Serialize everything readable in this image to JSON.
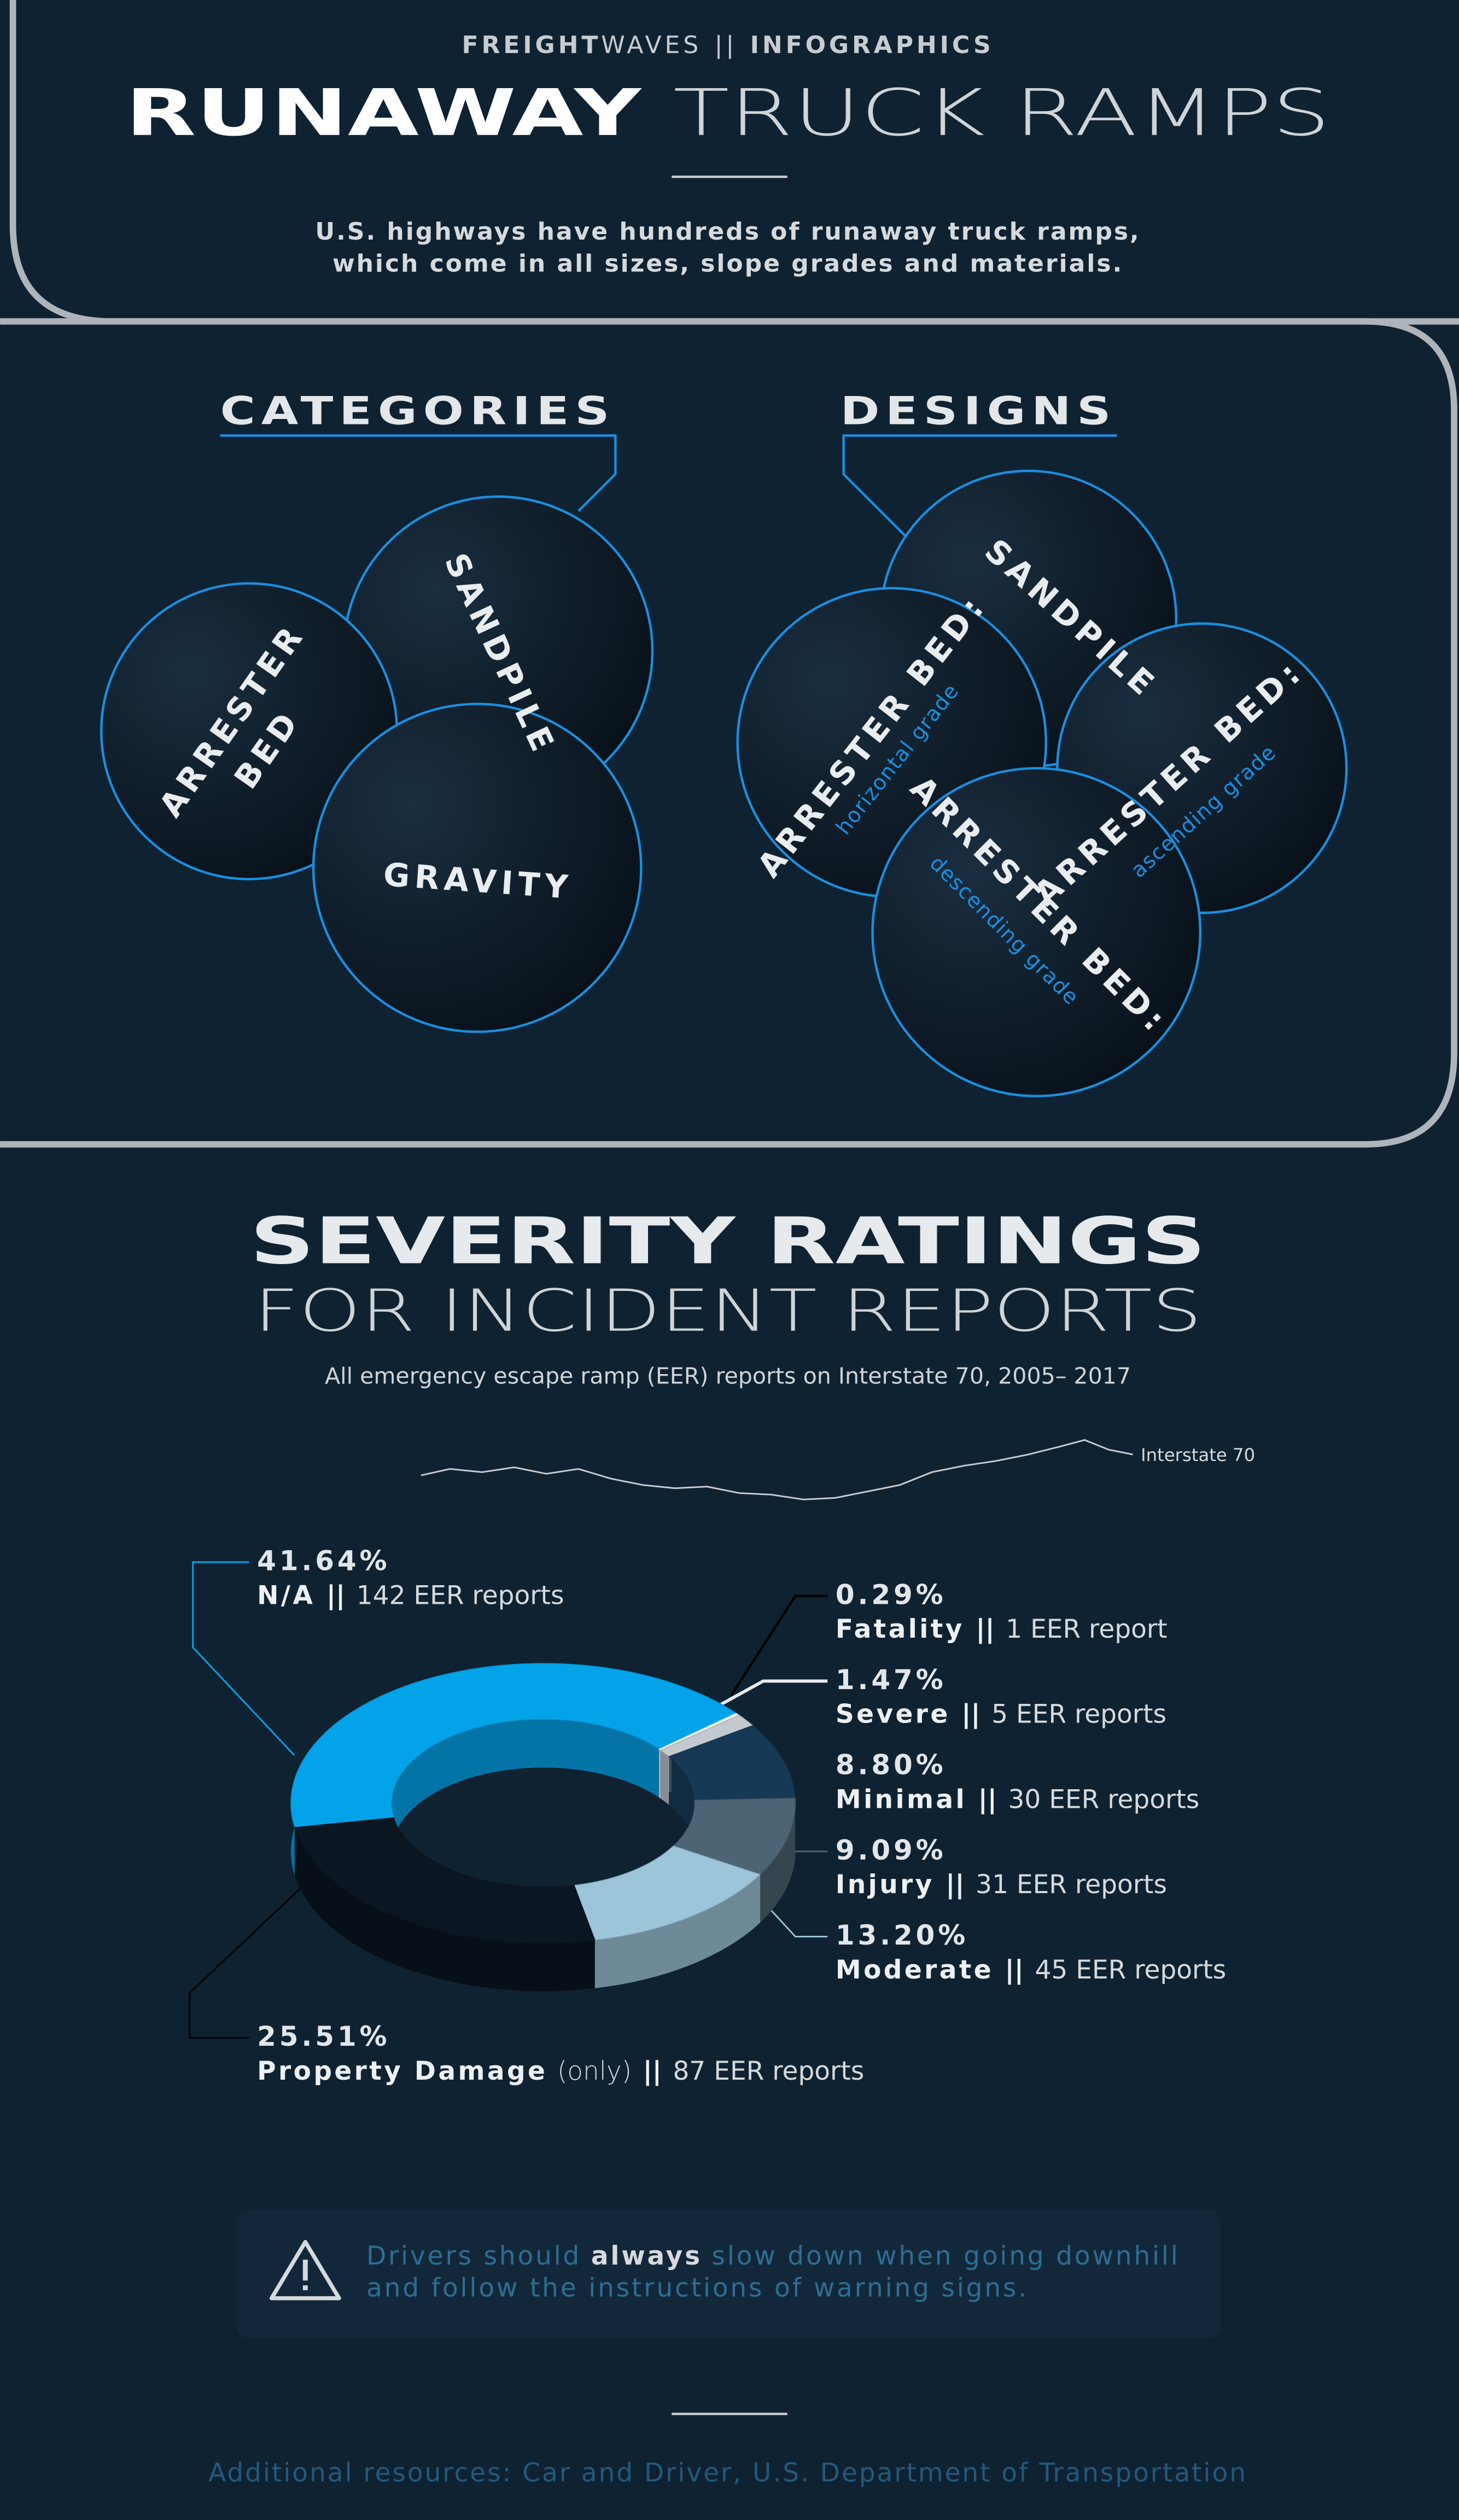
{
  "header": {
    "brand_bold": "FREIGHT",
    "brand_light": "WAVES",
    "separator": "||",
    "section": "INFOGRAPHICS",
    "title_bold": "RUNAWAY",
    "title_light": "TRUCK RAMPS",
    "subtitle": [
      "U.S. highways have hundreds of runaway truck ramps,",
      "which come in all sizes, slope grades and materials."
    ]
  },
  "categories": {
    "heading": "CATEGORIES",
    "sandpile": "SANDPILE",
    "arrester_bed": [
      "ARRESTER",
      "BED"
    ],
    "gravity": "GRAVITY"
  },
  "designs": {
    "heading": "DESIGNS",
    "items": [
      {
        "label": "SANDPILE"
      },
      {
        "label": "ARRESTER BED:",
        "note": "horizontal grade"
      },
      {
        "label": "ARRESTER BED:",
        "note": "ascending grade"
      },
      {
        "label": "ARRESTER BED:",
        "note": "descending grade"
      }
    ]
  },
  "chart_data": {
    "type": "donut",
    "title": "SEVERITY RATINGS",
    "subtitle": "FOR INCIDENT REPORTS",
    "caption": "All emergency escape ramp (EER) reports on Interstate 70, 2005– 2017",
    "route_label": "Interstate 70",
    "categories": [
      "N/A",
      "Fatality",
      "Severe",
      "Minimal",
      "Injury",
      "Moderate",
      "Property Damage"
    ],
    "values": [
      41.64,
      0.29,
      1.47,
      8.8,
      9.09,
      13.2,
      25.51
    ],
    "value_labels": [
      "41.64%",
      "0.29%",
      "1.47%",
      "8.80%",
      "9.09%",
      "13.20%",
      "25.51%"
    ],
    "counts": [
      "142 EER reports",
      "1 EER report",
      "5 EER reports",
      "30 EER reports",
      "31 EER reports",
      "45 EER reports",
      "87 EER reports"
    ],
    "colors": [
      "#03a3ea",
      "#f2f4f5",
      "#c3c9ce",
      "#163a55",
      "#4d6474",
      "#9dc5da",
      "#0a1723"
    ],
    "separator": "||",
    "property_damage_note": "(only)"
  },
  "notice": {
    "lead": "Drivers should",
    "emphasis": "always",
    "rest": "slow down when going downhill",
    "line2": "and follow the instructions of warning signs."
  },
  "footer": "Additional resources: Car and Driver, U.S. Department of Transportation"
}
